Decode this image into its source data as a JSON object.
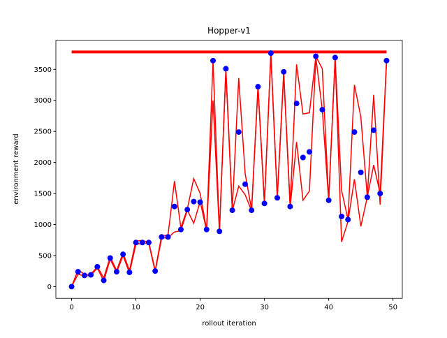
{
  "chart_data": {
    "type": "scatter",
    "title": "Hopper-v1",
    "xlabel": "rollout iteration",
    "ylabel": "environment reward",
    "x": [
      0,
      1,
      2,
      3,
      4,
      5,
      6,
      7,
      8,
      9,
      10,
      11,
      12,
      13,
      14,
      15,
      16,
      17,
      18,
      19,
      20,
      21,
      22,
      23,
      24,
      25,
      26,
      27,
      28,
      29,
      30,
      31,
      32,
      33,
      34,
      35,
      36,
      37,
      38,
      39,
      40,
      41,
      42,
      43,
      44,
      45,
      46,
      47,
      48,
      49
    ],
    "series": [
      {
        "type": "line",
        "color": "#ff0000",
        "values": [
          0,
          270,
          200,
          200,
          320,
          140,
          480,
          260,
          540,
          260,
          740,
          740,
          720,
          260,
          820,
          830,
          1700,
          950,
          1250,
          1740,
          1500,
          920,
          3640,
          900,
          3510,
          1250,
          3360,
          1820,
          1240,
          3230,
          1350,
          3760,
          1440,
          3460,
          1300,
          3580,
          2780,
          2800,
          3710,
          3510,
          1400,
          3690,
          1550,
          1080,
          3250,
          2730,
          1450,
          3090,
          1320,
          3640
        ]
      },
      {
        "type": "line",
        "color": "#ff0000",
        "values": [
          0,
          200,
          170,
          180,
          300,
          90,
          440,
          230,
          500,
          220,
          680,
          700,
          700,
          240,
          780,
          790,
          880,
          900,
          1230,
          1020,
          1370,
          900,
          3000,
          880,
          3480,
          1220,
          1620,
          1480,
          1220,
          3210,
          1330,
          3740,
          1420,
          3420,
          1280,
          2330,
          1390,
          1540,
          3690,
          2850,
          1380,
          3680,
          720,
          1050,
          1730,
          970,
          1440,
          1960,
          1500,
          3640
        ]
      },
      {
        "type": "scatter",
        "color": "#0000ff",
        "values": [
          0,
          240,
          180,
          190,
          320,
          100,
          460,
          240,
          520,
          230,
          710,
          710,
          710,
          250,
          800,
          800,
          1290,
          920,
          1240,
          1370,
          1360,
          920,
          3640,
          890,
          3510,
          1230,
          2490,
          1650,
          1230,
          3220,
          1340,
          3760,
          1430,
          3460,
          1290,
          2950,
          2080,
          2170,
          3710,
          2850,
          1390,
          3690,
          1130,
          1080,
          2490,
          1840,
          1440,
          2520,
          1500,
          3640
        ]
      }
    ],
    "hlines": [
      {
        "y": 3780,
        "xmin": 0,
        "xmax": 49,
        "color": "#ff0000"
      }
    ],
    "xlim": [
      -2.45,
      51.45
    ],
    "ylim": [
      -189,
      3969
    ],
    "xticks": [
      0,
      10,
      20,
      30,
      40,
      50
    ],
    "yticks": [
      0,
      500,
      1000,
      1500,
      2000,
      2500,
      3000,
      3500
    ]
  }
}
